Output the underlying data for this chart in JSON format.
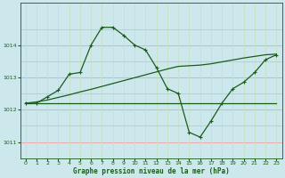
{
  "background_color": "#cce8ec",
  "grid_color_h": "#f0a0a0",
  "grid_color_v": "#c8e0c8",
  "line_color": "#1a5c1a",
  "title": "Graphe pression niveau de la mer (hPa)",
  "xlim": [
    -0.5,
    23.5
  ],
  "ylim": [
    1010.5,
    1015.3
  ],
  "yticks": [
    1011,
    1012,
    1013,
    1014
  ],
  "xticks": [
    0,
    1,
    2,
    3,
    4,
    5,
    6,
    7,
    8,
    9,
    10,
    11,
    12,
    13,
    14,
    15,
    16,
    17,
    18,
    19,
    20,
    21,
    22,
    23
  ],
  "main_curve_x": [
    0,
    1,
    2,
    3,
    4,
    5,
    6,
    7,
    8,
    9,
    10,
    11,
    12,
    13,
    14,
    15,
    16,
    17,
    18,
    19,
    20,
    21,
    22,
    23
  ],
  "main_curve_y": [
    1012.2,
    1012.2,
    1012.4,
    1012.6,
    1013.1,
    1013.15,
    1014.0,
    1014.55,
    1014.55,
    1014.3,
    1014.0,
    1013.85,
    1013.3,
    1012.65,
    1012.5,
    1011.3,
    1011.15,
    1011.65,
    1012.2,
    1012.65,
    1012.85,
    1013.15,
    1013.55,
    1013.7
  ],
  "flat_curve_x": [
    0,
    1,
    2,
    3,
    4,
    5,
    6,
    7,
    8,
    9,
    10,
    11,
    12,
    13,
    14,
    15,
    16,
    17,
    18,
    19,
    20,
    21,
    22,
    23
  ],
  "flat_curve_y": [
    1012.2,
    1012.2,
    1012.2,
    1012.2,
    1012.2,
    1012.2,
    1012.2,
    1012.2,
    1012.2,
    1012.2,
    1012.2,
    1012.2,
    1012.2,
    1012.2,
    1012.2,
    1012.2,
    1012.2,
    1012.2,
    1012.2,
    1012.2,
    1012.2,
    1012.2,
    1012.2,
    1012.2
  ],
  "rising_curve_x": [
    0,
    1,
    2,
    3,
    4,
    5,
    6,
    7,
    8,
    9,
    10,
    11,
    12,
    13,
    14,
    15,
    16,
    17,
    18,
    19,
    20,
    21,
    22,
    23
  ],
  "rising_curve_y": [
    1012.2,
    1012.24,
    1012.3,
    1012.38,
    1012.46,
    1012.55,
    1012.63,
    1012.72,
    1012.81,
    1012.9,
    1012.99,
    1013.08,
    1013.17,
    1013.26,
    1013.34,
    1013.36,
    1013.38,
    1013.42,
    1013.48,
    1013.54,
    1013.6,
    1013.65,
    1013.7,
    1013.72
  ]
}
